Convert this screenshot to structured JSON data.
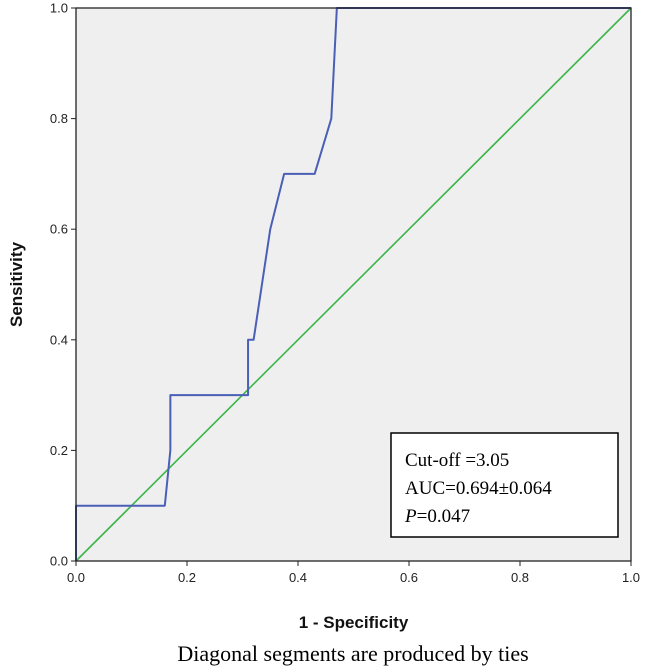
{
  "chart_data": {
    "type": "line",
    "xlabel": "1 - Specificity",
    "ylabel": "Sensitivity",
    "xlim": [
      0.0,
      1.0
    ],
    "ylim": [
      0.0,
      1.0
    ],
    "x_ticks": [
      "0.0",
      "0.2",
      "0.4",
      "0.6",
      "0.8",
      "1.0"
    ],
    "y_ticks": [
      "0.0",
      "0.2",
      "0.4",
      "0.6",
      "0.8",
      "1.0"
    ],
    "grid": false,
    "plot_background": "#efefef",
    "series": [
      {
        "color": "#4a5fb5",
        "x": [
          0.0,
          0.0,
          0.16,
          0.17,
          0.17,
          0.31,
          0.31,
          0.32,
          0.35,
          0.375,
          0.43,
          0.46,
          0.47,
          1.0
        ],
        "y": [
          0.0,
          0.1,
          0.1,
          0.2,
          0.3,
          0.3,
          0.4,
          0.4,
          0.6,
          0.7,
          0.7,
          0.8,
          1.0,
          1.0
        ]
      },
      {
        "color": "#3bb54a",
        "x": [
          0.0,
          1.0
        ],
        "y": [
          0.0,
          1.0
        ]
      }
    ],
    "annotations": [
      "Cut-off =3.05",
      "AUC=0.694±0.064",
      "=0.047"
    ],
    "annotation_p_symbol": "P",
    "annotation_position": "bottom-right",
    "footnote": "Diagonal segments are produced by ties"
  }
}
